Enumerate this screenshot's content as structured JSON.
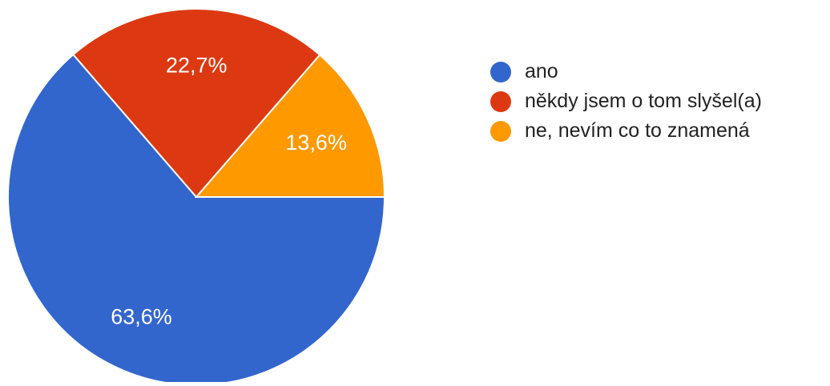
{
  "chart_data": {
    "type": "pie",
    "title": "",
    "slices": [
      {
        "label": "ano",
        "value": 63.6,
        "display": "63,6%",
        "color": "#3366cc"
      },
      {
        "label": "někdy jsem o tom slyšel(a)",
        "value": 22.7,
        "display": "22,7%",
        "color": "#dc3912"
      },
      {
        "label": "ne, nevím co to znamená",
        "value": 13.6,
        "display": "13,6%",
        "color": "#ff9900"
      }
    ],
    "legend_position": "right"
  }
}
